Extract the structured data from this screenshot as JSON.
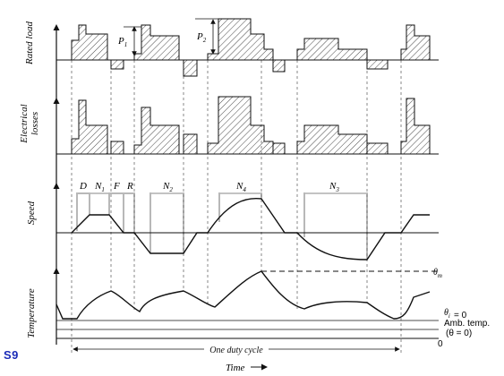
{
  "figure_tag": "S9",
  "axis_labels": {
    "rated_load": "Rated load",
    "electrical_losses_line1": "Electrical",
    "electrical_losses_line2": "losses",
    "speed": "Speed",
    "temperature": "Temperature",
    "time": "Time"
  },
  "load_annotations": {
    "p1": "P",
    "p1_sub": "1",
    "p2": "P",
    "p2_sub": "2"
  },
  "speed_intervals": {
    "d": "D",
    "n1": "N",
    "n1_sub": "1",
    "f": "F",
    "r": "R",
    "n2": "N",
    "n2_sub": "2",
    "n4": "N",
    "n4_sub": "4",
    "n3": "N",
    "n3_sub": "3"
  },
  "temperature_annotations": {
    "theta_max": "θ",
    "theta_max_sub": "m",
    "theta_initial": "θ",
    "theta_initial_sub": "i",
    "theta_initial_value": "= 0",
    "ambient_line1": "Amb. temp.",
    "ambient_line2": "(θ = 0)",
    "zero": "0"
  },
  "duty_cycle_label": "One duty cycle",
  "colors": {
    "ink": "#111111",
    "tag": "#1a2bb8",
    "hatch": "#333333"
  }
}
